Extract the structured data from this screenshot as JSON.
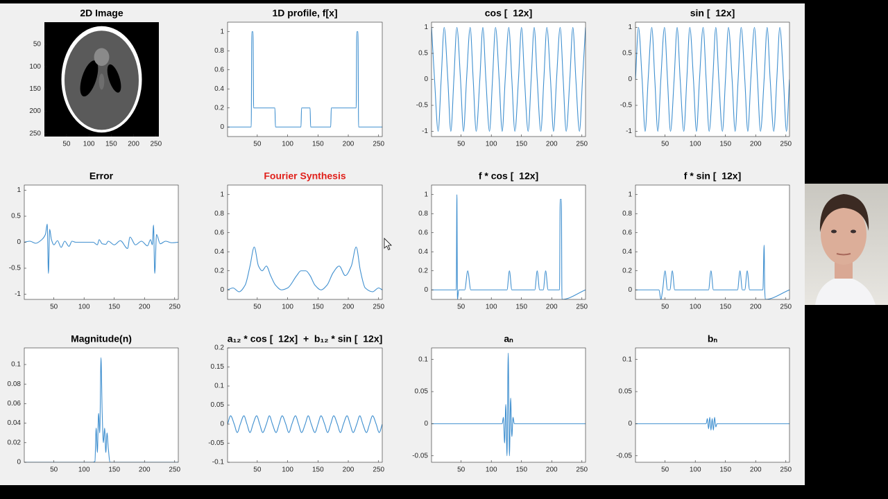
{
  "chart_data": [
    {
      "type": "image",
      "title": "2D Image",
      "xlim": [
        0.5,
        256.5
      ],
      "ylim": [
        256.5,
        0.5
      ],
      "xticks": [
        50,
        100,
        150,
        200,
        250
      ],
      "yticks": [
        50,
        100,
        150,
        200,
        250
      ]
    },
    {
      "type": "line",
      "title": "1D profile, f[x]",
      "color": "#3f8fcf",
      "xlim": [
        1,
        256
      ],
      "ylim": [
        -0.1,
        1.1
      ],
      "xticks": [
        50,
        100,
        150,
        200,
        250
      ],
      "yticks": [
        0,
        0.2,
        0.4,
        0.6,
        0.8,
        1
      ],
      "x": [
        1,
        40,
        41,
        43,
        44,
        79,
        80,
        122,
        123,
        137,
        138,
        171,
        172,
        213,
        214,
        216,
        217,
        256
      ],
      "values": [
        0,
        0,
        1,
        1,
        0.2,
        0.2,
        0,
        0,
        0.2,
        0.2,
        0,
        0,
        0.2,
        0.2,
        1,
        1,
        0,
        0
      ]
    },
    {
      "type": "line",
      "title": "cos [  12x]",
      "color": "#3f8fcf",
      "xlim": [
        1,
        256
      ],
      "ylim": [
        -1.1,
        1.1
      ],
      "xticks": [
        50,
        100,
        150,
        200,
        250
      ],
      "yticks": [
        -1,
        -0.5,
        0,
        0.5,
        1
      ],
      "x": [
        1,
        6,
        12,
        17,
        22,
        28,
        33,
        38,
        43,
        49,
        54,
        59,
        65,
        70,
        75,
        81,
        86,
        91,
        97,
        102,
        107,
        113,
        118,
        123,
        129,
        134,
        139,
        145,
        150,
        155,
        161,
        166,
        171,
        176,
        182,
        187,
        192,
        198,
        203,
        208,
        214,
        219,
        224,
        230,
        235,
        240,
        246,
        251,
        256
      ],
      "values": [
        1,
        0,
        -1,
        0,
        1,
        0,
        -1,
        0,
        1,
        0,
        -1,
        0,
        1,
        0,
        -1,
        0,
        1,
        0,
        -1,
        0,
        1,
        0,
        -1,
        0,
        1,
        0,
        -1,
        0,
        1,
        0,
        -1,
        0,
        1,
        0,
        -1,
        0,
        1,
        0,
        -1,
        0,
        1,
        0,
        -1,
        0,
        1,
        0,
        -1,
        0,
        1
      ]
    },
    {
      "type": "line",
      "title": "sin [  12x]",
      "color": "#3f8fcf",
      "xlim": [
        1,
        256
      ],
      "ylim": [
        -1.1,
        1.1
      ],
      "xticks": [
        50,
        100,
        150,
        200,
        250
      ],
      "yticks": [
        -1,
        -0.5,
        0,
        0.5,
        1
      ],
      "x": [
        1,
        6,
        12,
        17,
        22,
        28,
        33,
        38,
        43,
        49,
        54,
        59,
        65,
        70,
        75,
        81,
        86,
        91,
        97,
        102,
        107,
        113,
        118,
        123,
        129,
        134,
        139,
        145,
        150,
        155,
        161,
        166,
        171,
        176,
        182,
        187,
        192,
        198,
        203,
        208,
        214,
        219,
        224,
        230,
        235,
        240,
        246,
        251,
        256
      ],
      "values": [
        0,
        1,
        0,
        -1,
        0,
        1,
        0,
        -1,
        0,
        1,
        0,
        -1,
        0,
        1,
        0,
        -1,
        0,
        1,
        0,
        -1,
        0,
        1,
        0,
        -1,
        0,
        1,
        0,
        -1,
        0,
        1,
        0,
        -1,
        0,
        1,
        0,
        -1,
        0,
        1,
        0,
        -1,
        0,
        1,
        0,
        -1,
        0,
        1,
        0,
        -1,
        0
      ]
    },
    {
      "type": "line",
      "title": "Error",
      "color": "#3f8fcf",
      "xlim": [
        1,
        256
      ],
      "ylim": [
        -1.1,
        1.1
      ],
      "xticks": [
        50,
        100,
        150,
        200,
        250
      ],
      "yticks": [
        -1,
        -0.5,
        0,
        0.5,
        1
      ],
      "x": [
        1,
        10,
        20,
        30,
        36,
        39,
        41,
        43,
        46,
        50,
        56,
        62,
        68,
        75,
        80,
        86,
        95,
        105,
        115,
        122,
        125,
        130,
        136,
        140,
        150,
        160,
        172,
        176,
        185,
        195,
        205,
        210,
        213,
        215,
        217,
        220,
        226,
        235,
        245,
        256
      ],
      "values": [
        0,
        0.02,
        -0.02,
        0.05,
        0.15,
        0.35,
        -0.6,
        0.25,
        0.05,
        -0.05,
        0.03,
        -0.1,
        0.02,
        -0.08,
        0.02,
        0,
        0,
        0,
        0,
        -0.05,
        0.05,
        -0.03,
        -0.04,
        0.02,
        -0.05,
        0.03,
        -0.12,
        0.1,
        -0.05,
        0.02,
        -0.07,
        0.05,
        -0.05,
        0.33,
        -0.6,
        0.15,
        -0.03,
        0.02,
        -0.01,
        0
      ]
    },
    {
      "type": "line",
      "title": "Fourier Synthesis",
      "title_color": "#e0201b",
      "color": "#3f8fcf",
      "xlim": [
        1,
        256
      ],
      "ylim": [
        -0.1,
        1.1
      ],
      "xticks": [
        50,
        100,
        150,
        200,
        250
      ],
      "yticks": [
        0,
        0.2,
        0.4,
        0.6,
        0.8,
        1
      ],
      "x": [
        1,
        10,
        20,
        30,
        38,
        45,
        52,
        58,
        65,
        72,
        80,
        90,
        100,
        115,
        122,
        130,
        137,
        145,
        155,
        165,
        175,
        185,
        195,
        205,
        213,
        220,
        228,
        240,
        250,
        256
      ],
      "values": [
        0,
        0.02,
        -0.02,
        0.05,
        0.25,
        0.45,
        0.25,
        0.2,
        0.25,
        0.15,
        0.05,
        0,
        0.02,
        0.15,
        0.2,
        0.2,
        0.15,
        0.05,
        0,
        0.05,
        0.18,
        0.25,
        0.15,
        0.25,
        0.45,
        0.2,
        0.02,
        -0.02,
        0.02,
        0
      ]
    },
    {
      "type": "line",
      "title": "f * cos [  12x]",
      "color": "#3f8fcf",
      "xlim": [
        1,
        256
      ],
      "ylim": [
        -0.1,
        1.1
      ],
      "xticks": [
        50,
        100,
        150,
        200,
        250
      ],
      "yticks": [
        0,
        0.2,
        0.4,
        0.6,
        0.8,
        1
      ],
      "x": [
        1,
        40,
        42,
        43,
        44,
        46,
        56,
        61,
        66,
        122,
        126,
        130,
        134,
        170,
        172,
        176,
        180,
        186,
        190,
        194,
        210,
        213,
        214,
        216,
        217,
        256
      ],
      "values": [
        0,
        0,
        0,
        1,
        -0.1,
        0,
        0,
        0.2,
        0,
        0,
        0,
        0.2,
        0,
        0,
        0,
        0.2,
        0,
        0,
        0.2,
        0,
        0,
        0,
        0.95,
        0.95,
        -0.1,
        0
      ]
    },
    {
      "type": "line",
      "title": "f * sin [  12x]",
      "color": "#3f8fcf",
      "xlim": [
        1,
        256
      ],
      "ylim": [
        -0.1,
        1.1
      ],
      "xticks": [
        50,
        100,
        150,
        200,
        250
      ],
      "yticks": [
        0,
        0.2,
        0.4,
        0.6,
        0.8,
        1
      ],
      "x": [
        1,
        40,
        43,
        46,
        50,
        54,
        58,
        62,
        66,
        122,
        126,
        130,
        134,
        170,
        174,
        178,
        182,
        186,
        190,
        212,
        214,
        215,
        216,
        256
      ],
      "values": [
        0,
        0,
        -0.1,
        0,
        0.2,
        0,
        0,
        0.2,
        0,
        0,
        0.2,
        0,
        0,
        0,
        0.2,
        0,
        0,
        0.2,
        0,
        0,
        0.47,
        0,
        -0.1,
        0
      ]
    },
    {
      "type": "line",
      "title": "Magnitude(n)",
      "color": "#3f8fcf",
      "xlim": [
        1,
        256
      ],
      "ylim": [
        0,
        0.117
      ],
      "xticks": [
        50,
        100,
        150,
        200,
        250
      ],
      "yticks": [
        0,
        0.02,
        0.04,
        0.06,
        0.08,
        0.1
      ],
      "x": [
        1,
        115,
        118,
        120,
        122,
        124,
        126,
        128,
        130,
        132,
        134,
        136,
        138,
        140,
        143,
        256
      ],
      "values": [
        0,
        0,
        0.001,
        0.035,
        0.01,
        0.05,
        0.03,
        0.107,
        0.05,
        0.02,
        0.035,
        0.01,
        0.03,
        0.015,
        0,
        0
      ]
    },
    {
      "type": "line",
      "title": "a₁₂ * cos [  12x]  +  b₁₂ * sin [  12x]",
      "color": "#3f8fcf",
      "xlim": [
        1,
        256
      ],
      "ylim": [
        -0.1,
        0.2
      ],
      "xticks": [
        50,
        100,
        150,
        200,
        250
      ],
      "yticks": [
        -0.1,
        -0.05,
        0,
        0.05,
        0.1,
        0.15,
        0.2
      ],
      "x": [
        1,
        6,
        12,
        17,
        22,
        28,
        33,
        38,
        43,
        49,
        54,
        59,
        65,
        70,
        75,
        81,
        86,
        91,
        97,
        102,
        107,
        113,
        118,
        123,
        129,
        134,
        139,
        145,
        150,
        155,
        161,
        166,
        171,
        176,
        182,
        187,
        192,
        198,
        203,
        208,
        214,
        219,
        224,
        230,
        235,
        240,
        246,
        251,
        256
      ],
      "values": [
        0,
        0.022,
        0,
        -0.022,
        0,
        0.022,
        0,
        -0.022,
        0,
        0.022,
        0,
        -0.022,
        0,
        0.022,
        0,
        -0.022,
        0,
        0.022,
        0,
        -0.022,
        0,
        0.022,
        0,
        -0.022,
        0,
        0.022,
        0,
        -0.022,
        0,
        0.022,
        0,
        -0.022,
        0,
        0.022,
        0,
        -0.022,
        0,
        0.022,
        0,
        -0.022,
        0,
        0.022,
        0,
        -0.022,
        0,
        0.022,
        0,
        -0.022,
        0
      ]
    },
    {
      "type": "line",
      "title": "aₙ",
      "color": "#3f8fcf",
      "xlim": [
        1,
        256
      ],
      "ylim": [
        -0.06,
        0.118
      ],
      "xticks": [
        50,
        100,
        150,
        200,
        250
      ],
      "yticks": [
        -0.05,
        0,
        0.05,
        0.1
      ],
      "x": [
        1,
        118,
        120,
        122,
        124,
        126,
        128,
        130,
        132,
        134,
        136,
        138,
        256
      ],
      "values": [
        0,
        0,
        0.01,
        -0.03,
        0.03,
        -0.05,
        0.11,
        -0.05,
        0.04,
        -0.02,
        0.01,
        0,
        0
      ]
    },
    {
      "type": "line",
      "title": "bₙ",
      "color": "#3f8fcf",
      "xlim": [
        1,
        256
      ],
      "ylim": [
        -0.06,
        0.118
      ],
      "xticks": [
        50,
        100,
        150,
        200,
        250
      ],
      "yticks": [
        -0.05,
        0,
        0.05,
        0.1
      ],
      "x": [
        1,
        118,
        120,
        122,
        124,
        126,
        128,
        130,
        132,
        134,
        136,
        256
      ],
      "values": [
        0,
        0,
        0.008,
        -0.008,
        0.01,
        -0.01,
        0.008,
        -0.01,
        0.01,
        -0.005,
        0,
        0
      ]
    }
  ]
}
